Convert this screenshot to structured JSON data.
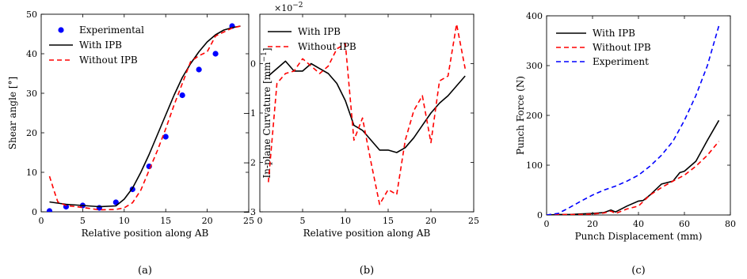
{
  "chart_data": [
    {
      "type": "line",
      "xlabel": "Relative position along AB",
      "ylabel": "Shear angle [°]",
      "xlim": [
        0,
        25
      ],
      "ylim": [
        0,
        50
      ],
      "xticks": [
        "0",
        "5",
        "10",
        "15",
        "20",
        "25"
      ],
      "yticks": [
        "0",
        "10",
        "20",
        "30",
        "40",
        "50"
      ],
      "legend_position": "top-left",
      "caption": "(a)",
      "series": [
        {
          "name": "Experimental",
          "style": "markers",
          "color": "#0000ff",
          "x": [
            1,
            3,
            5,
            7,
            9,
            11,
            13,
            15,
            17,
            19,
            21,
            23
          ],
          "y": [
            0.2,
            1.3,
            1.6,
            1.0,
            2.4,
            5.7,
            11.5,
            19.0,
            29.5,
            36.0,
            40.0,
            47.0
          ]
        },
        {
          "name": "With IPB",
          "style": "solid",
          "color": "#000000",
          "x": [
            1,
            3,
            5,
            7,
            9,
            10,
            11,
            12,
            13,
            14,
            15,
            16,
            17,
            18,
            19,
            20,
            21,
            22,
            23,
            24
          ],
          "y": [
            2.5,
            1.9,
            1.6,
            1.3,
            1.5,
            3.2,
            6.0,
            10.0,
            14.5,
            19.5,
            24.5,
            29.5,
            34.0,
            37.5,
            40.5,
            43.0,
            44.8,
            46.0,
            46.6,
            47.0
          ]
        },
        {
          "name": "Without IPB",
          "style": "dashed",
          "color": "#ff0000",
          "x": [
            1,
            1.6,
            2,
            3,
            5,
            7,
            9,
            10,
            11,
            12,
            13,
            14,
            15,
            16,
            17,
            18,
            19,
            20,
            21,
            22,
            23,
            24
          ],
          "y": [
            9.0,
            5.0,
            2.5,
            1.6,
            1.1,
            0.5,
            0.6,
            1.0,
            2.3,
            5.5,
            10.5,
            15.5,
            21.0,
            27.0,
            32.5,
            38.0,
            39.5,
            40.5,
            44.5,
            45.5,
            46.5,
            47.0
          ]
        }
      ]
    },
    {
      "type": "line",
      "xlabel": "Relative position along AB",
      "ylabel": "In-plane Curvature [mm",
      "ylabel_unit_sup": "−1",
      "ylabel_close": "]",
      "scale_base": "×10",
      "scale_exp": "−2",
      "xlim": [
        0,
        25
      ],
      "ylim": [
        -3,
        1
      ],
      "xticks": [
        "0",
        "5",
        "10",
        "15",
        "20",
        "25"
      ],
      "yticks": [
        "−3",
        "−2",
        "−1",
        "0"
      ],
      "legend_position": "top-left",
      "caption": "(b)",
      "series": [
        {
          "name": "With IPB",
          "style": "solid",
          "color": "#000000",
          "x": [
            1,
            3,
            4,
            5,
            6,
            7,
            8,
            9,
            10,
            11,
            12,
            13,
            14,
            15,
            16,
            17,
            18,
            19,
            20,
            21,
            22,
            23,
            24
          ],
          "y": [
            -0.25,
            0.05,
            -0.15,
            -0.15,
            0.0,
            -0.1,
            -0.2,
            -0.4,
            -0.75,
            -1.25,
            -1.35,
            -1.55,
            -1.75,
            -1.75,
            -1.8,
            -1.7,
            -1.5,
            -1.25,
            -1.0,
            -0.8,
            -0.65,
            -0.45,
            -0.25
          ]
        },
        {
          "name": "Without IPB",
          "style": "dashed",
          "color": "#ff0000",
          "x": [
            1,
            2,
            3,
            4,
            5,
            6,
            7,
            8,
            9,
            10,
            11,
            12,
            13,
            14,
            15,
            16,
            17,
            18,
            19,
            20,
            21,
            22,
            23,
            24
          ],
          "y": [
            -2.4,
            -0.4,
            -0.2,
            -0.15,
            0.1,
            -0.05,
            -0.2,
            -0.05,
            0.3,
            0.4,
            -1.55,
            -1.1,
            -2.0,
            -2.85,
            -2.55,
            -2.65,
            -1.55,
            -0.95,
            -0.65,
            -1.6,
            -0.35,
            -0.25,
            0.8,
            -0.1
          ]
        }
      ]
    },
    {
      "type": "line",
      "xlabel": "Punch Displacement (mm)",
      "ylabel": "Punch Force (N)",
      "xlim": [
        0,
        80
      ],
      "ylim": [
        0,
        400
      ],
      "xticks": [
        "0",
        "20",
        "40",
        "60",
        "80"
      ],
      "yticks": [
        "0",
        "100",
        "200",
        "300",
        "400"
      ],
      "legend_position": "top-left",
      "caption": "(c)",
      "series": [
        {
          "name": "With IPB",
          "style": "solid",
          "color": "#000000",
          "x": [
            0,
            5,
            10,
            15,
            20,
            25,
            28,
            30,
            35,
            40,
            42,
            45,
            50,
            55,
            58,
            60,
            65,
            70,
            75
          ],
          "y": [
            0,
            1,
            1,
            2,
            3,
            5,
            10,
            6,
            18,
            28,
            29,
            40,
            62,
            68,
            85,
            88,
            108,
            150,
            190
          ]
        },
        {
          "name": "Without IPB",
          "style": "dashed",
          "color": "#ff0000",
          "x": [
            0,
            5,
            10,
            15,
            20,
            25,
            28,
            30,
            35,
            40,
            45,
            50,
            55,
            60,
            65,
            70,
            75
          ],
          "y": [
            0,
            1,
            1,
            1,
            2,
            4,
            8,
            3,
            12,
            18,
            40,
            55,
            68,
            80,
            98,
            120,
            148
          ]
        },
        {
          "name": "Experiment",
          "style": "dashed",
          "color": "#0000ff",
          "x": [
            0,
            5,
            10,
            15,
            20,
            25,
            30,
            35,
            40,
            45,
            50,
            55,
            60,
            65,
            70,
            75
          ],
          "y": [
            0,
            3,
            15,
            28,
            40,
            50,
            58,
            68,
            80,
            98,
            120,
            148,
            190,
            240,
            300,
            380
          ]
        }
      ]
    }
  ]
}
